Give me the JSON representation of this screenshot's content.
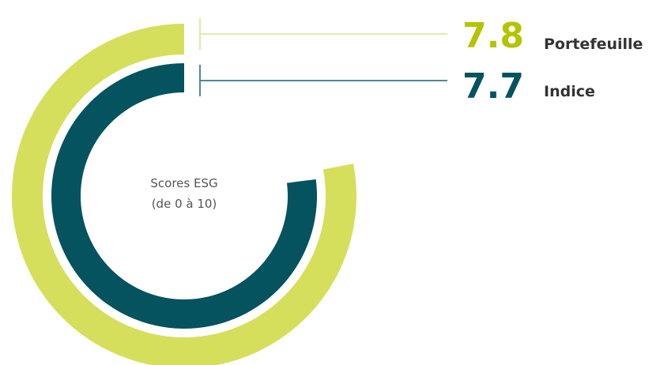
{
  "chart_data": {
    "type": "radial-bar",
    "scale": [
      0,
      10
    ],
    "center_label": [
      "Scores ESG",
      "(de 0 à 10)"
    ],
    "series": [
      {
        "name": "Portefeuille",
        "value": 7.8,
        "value_label": "7.8",
        "color": "#d6df5c",
        "line_color": "#e3e8a8"
      },
      {
        "name": "Indice",
        "value": 7.7,
        "value_label": "7.7",
        "color": "#04535f",
        "line_color": "#4f8a93"
      }
    ]
  }
}
